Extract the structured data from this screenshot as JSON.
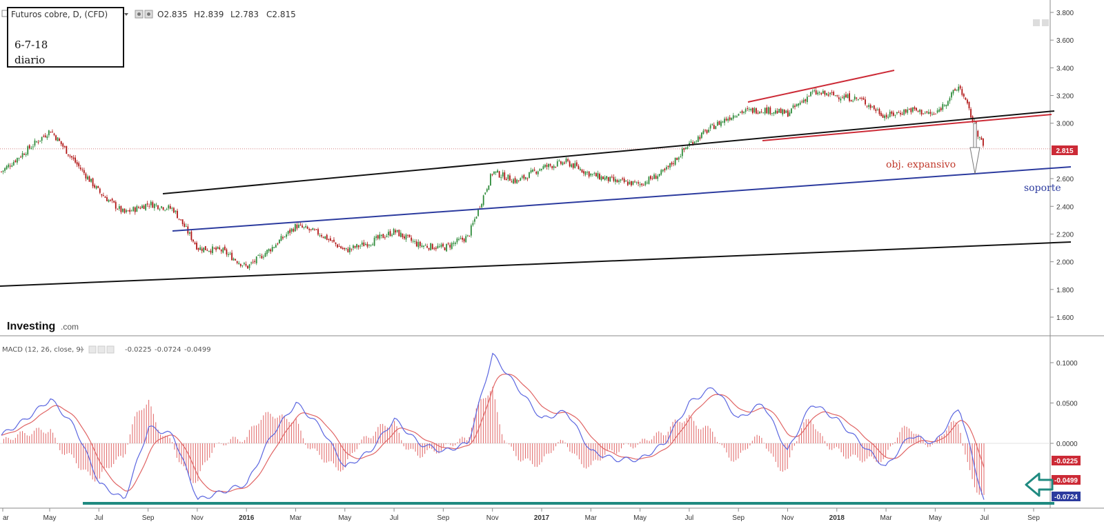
{
  "header": {
    "title": "Futuros cobre, D, (CFD)",
    "ohlc": [
      "O2.835",
      "H2.839",
      "L2.783",
      "C2.815"
    ]
  },
  "note_box": {
    "line1": "6-7-18",
    "line2": "diario"
  },
  "logo": {
    "brand": "Investing",
    "suffix": ".com"
  },
  "annotations": {
    "target": "obj. expansivo",
    "support": "soporte"
  },
  "macd_header": {
    "label": "MACD (12, 26, close, 9)",
    "values": [
      "-0.0225",
      "-0.0724",
      "-0.0499"
    ]
  },
  "colors": {
    "up_candle": "#2e8b3a",
    "down_candle": "#b01515",
    "black_line": "#111111",
    "blue_line": "#2b3a9e",
    "red_line": "#cc2a36",
    "macd_line": "#5b66e0",
    "signal_line": "#e06464",
    "teal_arrow": "#1f8a80"
  },
  "chart_data": [
    {
      "type": "candlestick",
      "title": "Futuros cobre, D, (CFD)",
      "x_ticks": [
        "ar",
        "May",
        "Jul",
        "Sep",
        "Nov",
        "2016",
        "Mar",
        "May",
        "Jul",
        "Sep",
        "Nov",
        "2017",
        "Mar",
        "May",
        "Jul",
        "Sep",
        "Nov",
        "2018",
        "Mar",
        "May",
        "Jul",
        "Sep"
      ],
      "y_ticks": [
        "3.800",
        "3.600",
        "3.400",
        "3.200",
        "3.000",
        "2.815",
        "2.600",
        "2.400",
        "2.200",
        "2.000",
        "1.800",
        "1.600"
      ],
      "ylim": [
        1.5,
        3.84
      ],
      "last_close": 2.815,
      "price_path": [
        {
          "date": "2015-03",
          "close": 2.65
        },
        {
          "date": "2015-04",
          "close": 2.8
        },
        {
          "date": "2015-05",
          "close": 2.95
        },
        {
          "date": "2015-06",
          "close": 2.72
        },
        {
          "date": "2015-07",
          "close": 2.5
        },
        {
          "date": "2015-08",
          "close": 2.35
        },
        {
          "date": "2015-09",
          "close": 2.42
        },
        {
          "date": "2015-10",
          "close": 2.38
        },
        {
          "date": "2015-11",
          "close": 2.1
        },
        {
          "date": "2015-12",
          "close": 2.08
        },
        {
          "date": "2016-01",
          "close": 1.96
        },
        {
          "date": "2016-02",
          "close": 2.1
        },
        {
          "date": "2016-03",
          "close": 2.26
        },
        {
          "date": "2016-04",
          "close": 2.2
        },
        {
          "date": "2016-05",
          "close": 2.08
        },
        {
          "date": "2016-06",
          "close": 2.14
        },
        {
          "date": "2016-07",
          "close": 2.22
        },
        {
          "date": "2016-08",
          "close": 2.12
        },
        {
          "date": "2016-09",
          "close": 2.1
        },
        {
          "date": "2016-10",
          "close": 2.18
        },
        {
          "date": "2016-11",
          "close": 2.65
        },
        {
          "date": "2016-12",
          "close": 2.58
        },
        {
          "date": "2017-01",
          "close": 2.68
        },
        {
          "date": "2017-02",
          "close": 2.72
        },
        {
          "date": "2017-03",
          "close": 2.63
        },
        {
          "date": "2017-04",
          "close": 2.58
        },
        {
          "date": "2017-05",
          "close": 2.56
        },
        {
          "date": "2017-06",
          "close": 2.65
        },
        {
          "date": "2017-07",
          "close": 2.85
        },
        {
          "date": "2017-08",
          "close": 2.98
        },
        {
          "date": "2017-09",
          "close": 3.08
        },
        {
          "date": "2017-10",
          "close": 3.1
        },
        {
          "date": "2017-11",
          "close": 3.07
        },
        {
          "date": "2017-12",
          "close": 3.22
        },
        {
          "date": "2018-01",
          "close": 3.2
        },
        {
          "date": "2018-02",
          "close": 3.17
        },
        {
          "date": "2018-03",
          "close": 3.05
        },
        {
          "date": "2018-04",
          "close": 3.1
        },
        {
          "date": "2018-05",
          "close": 3.06
        },
        {
          "date": "2018-06",
          "close": 3.27
        },
        {
          "date": "2018-07",
          "close": 2.815
        }
      ]
    },
    {
      "type": "line",
      "title": "MACD (12, 26, close, 9)",
      "y_ticks": [
        "0.1000",
        "0.0500",
        "0.0000",
        "-0.0225",
        "-0.0499",
        "-0.0724"
      ],
      "ylim": [
        -0.08,
        0.13
      ],
      "series": [
        {
          "name": "MACD",
          "last": -0.0724
        },
        {
          "name": "Signal",
          "last": -0.0499
        },
        {
          "name": "Histogram",
          "last": -0.0225
        }
      ],
      "macd_path": [
        {
          "date": "2015-03",
          "value": 0.01
        },
        {
          "date": "2015-04",
          "value": 0.03
        },
        {
          "date": "2015-05",
          "value": 0.055
        },
        {
          "date": "2015-06",
          "value": 0.02
        },
        {
          "date": "2015-07",
          "value": -0.05
        },
        {
          "date": "2015-08",
          "value": -0.07
        },
        {
          "date": "2015-09",
          "value": 0.02
        },
        {
          "date": "2015-10",
          "value": 0.01
        },
        {
          "date": "2015-11",
          "value": -0.07
        },
        {
          "date": "2015-12",
          "value": -0.06
        },
        {
          "date": "2016-01",
          "value": -0.05
        },
        {
          "date": "2016-02",
          "value": 0.01
        },
        {
          "date": "2016-03",
          "value": 0.05
        },
        {
          "date": "2016-04",
          "value": 0.02
        },
        {
          "date": "2016-05",
          "value": -0.03
        },
        {
          "date": "2016-06",
          "value": -0.01
        },
        {
          "date": "2016-07",
          "value": 0.03
        },
        {
          "date": "2016-08",
          "value": 0.0
        },
        {
          "date": "2016-09",
          "value": -0.01
        },
        {
          "date": "2016-10",
          "value": 0.0
        },
        {
          "date": "2016-11",
          "value": 0.11
        },
        {
          "date": "2016-12",
          "value": 0.07
        },
        {
          "date": "2017-01",
          "value": 0.03
        },
        {
          "date": "2017-02",
          "value": 0.04
        },
        {
          "date": "2017-03",
          "value": -0.01
        },
        {
          "date": "2017-04",
          "value": -0.02
        },
        {
          "date": "2017-05",
          "value": -0.02
        },
        {
          "date": "2017-06",
          "value": 0.0
        },
        {
          "date": "2017-07",
          "value": 0.05
        },
        {
          "date": "2017-08",
          "value": 0.07
        },
        {
          "date": "2017-09",
          "value": 0.03
        },
        {
          "date": "2017-10",
          "value": 0.05
        },
        {
          "date": "2017-11",
          "value": -0.01
        },
        {
          "date": "2017-12",
          "value": 0.05
        },
        {
          "date": "2018-01",
          "value": 0.03
        },
        {
          "date": "2018-02",
          "value": 0.0
        },
        {
          "date": "2018-03",
          "value": -0.03
        },
        {
          "date": "2018-04",
          "value": 0.01
        },
        {
          "date": "2018-05",
          "value": 0.0
        },
        {
          "date": "2018-06",
          "value": 0.045
        },
        {
          "date": "2018-07",
          "value": -0.0724
        }
      ]
    }
  ]
}
